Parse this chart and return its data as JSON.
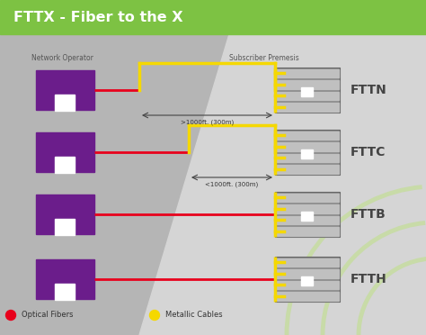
{
  "title": "FTTX - Fiber to the X",
  "title_bg_color": "#7dc243",
  "bg_color": "#f0f0f0",
  "header_left": "Network Operator",
  "header_right": "Subscriber Premesis",
  "labels": [
    "FTTN",
    "FTTC",
    "FTTB",
    "FTTH"
  ],
  "purple_box_color": "#6b1d8b",
  "device_color": "#909090",
  "device_stripe_color": "#c0c0c0",
  "red_line_color": "#e8001c",
  "yellow_line_color": "#f5d800",
  "annotation1": ">1000ft. (300m)",
  "annotation2": "<1000ft. (300m)",
  "legend_fiber": "Optical Fibers",
  "legend_metallic": "Metallic Cables"
}
